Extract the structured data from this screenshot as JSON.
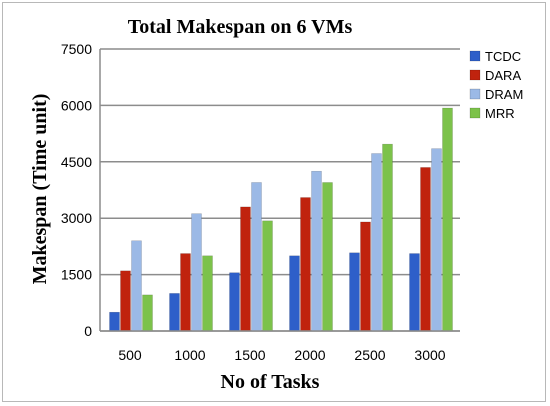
{
  "chart_data": {
    "type": "bar",
    "title": "Total Makespan on 6 VMs",
    "xlabel": "No of Tasks",
    "ylabel": "Makespan (Time unit)",
    "categories": [
      "500",
      "1000",
      "1500",
      "2000",
      "2500",
      "3000"
    ],
    "ylim": [
      0,
      7500
    ],
    "yticks": [
      0,
      1500,
      3000,
      4500,
      6000,
      7500
    ],
    "grid": true,
    "legend_position": "right",
    "series": [
      {
        "name": "TCDC",
        "color": "#2e5fc9",
        "values": [
          500,
          1000,
          1550,
          2000,
          2080,
          2060
        ]
      },
      {
        "name": "DARA",
        "color": "#c0230e",
        "values": [
          1600,
          2060,
          3300,
          3550,
          2900,
          4350
        ]
      },
      {
        "name": "DRAM",
        "color": "#9bb9e6",
        "values": [
          2400,
          3120,
          3950,
          4250,
          4720,
          4850
        ]
      },
      {
        "name": "MRR",
        "color": "#7cc24a",
        "values": [
          960,
          2000,
          2930,
          3950,
          4970,
          5930
        ]
      }
    ]
  }
}
